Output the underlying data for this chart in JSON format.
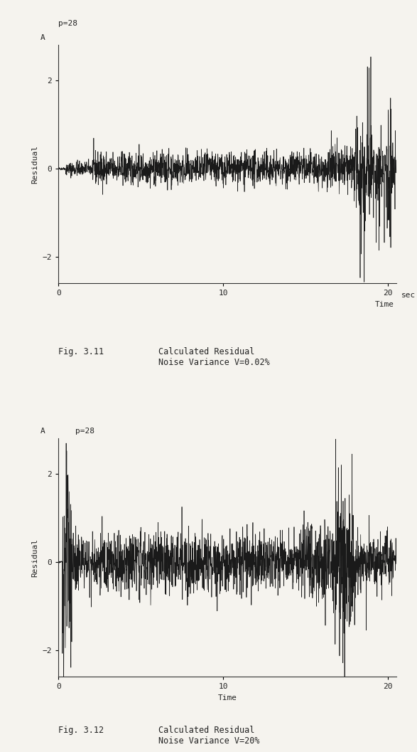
{
  "fig_width": 5.87,
  "fig_height": 10.57,
  "dpi": 100,
  "background_color": "#f5f3ee",
  "plot1": {
    "title_above": "p=28",
    "ylabel": "Residual",
    "xlabel_unit": "sec",
    "xlabel_label": "Time",
    "unit_label": "A",
    "ylim": [
      -2.6,
      2.8
    ],
    "xlim": [
      0,
      20.5
    ],
    "yticks": [
      -2,
      0,
      2
    ],
    "xticks": [
      0,
      10,
      20
    ],
    "caption_title": "Fig. 3.11",
    "caption_text": "Calculated Residual\nNoise Variance V=0.02%",
    "noise_scale1": 0.18,
    "noise_scale2": 0.55,
    "noise_scale3": 2.3,
    "seed": 42
  },
  "plot2": {
    "title_inside": "p=28",
    "ylabel": "Residual",
    "xlabel_label": "Time",
    "unit_label": "A",
    "ylim": [
      -2.6,
      2.8
    ],
    "xlim": [
      0,
      20.5
    ],
    "yticks": [
      -2,
      0,
      2
    ],
    "xticks": [
      0,
      10,
      20
    ],
    "caption_title": "Fig. 3.12",
    "caption_text": "Calculated Residual\nNoise Variance V=20%",
    "noise_scale1": 0.35,
    "noise_scale2": 0.75,
    "noise_scale3": 2.3,
    "seed": 123
  },
  "line_color": "#1a1a1a",
  "line_width": 0.5,
  "font_family": "monospace",
  "axis_color": "#333333"
}
